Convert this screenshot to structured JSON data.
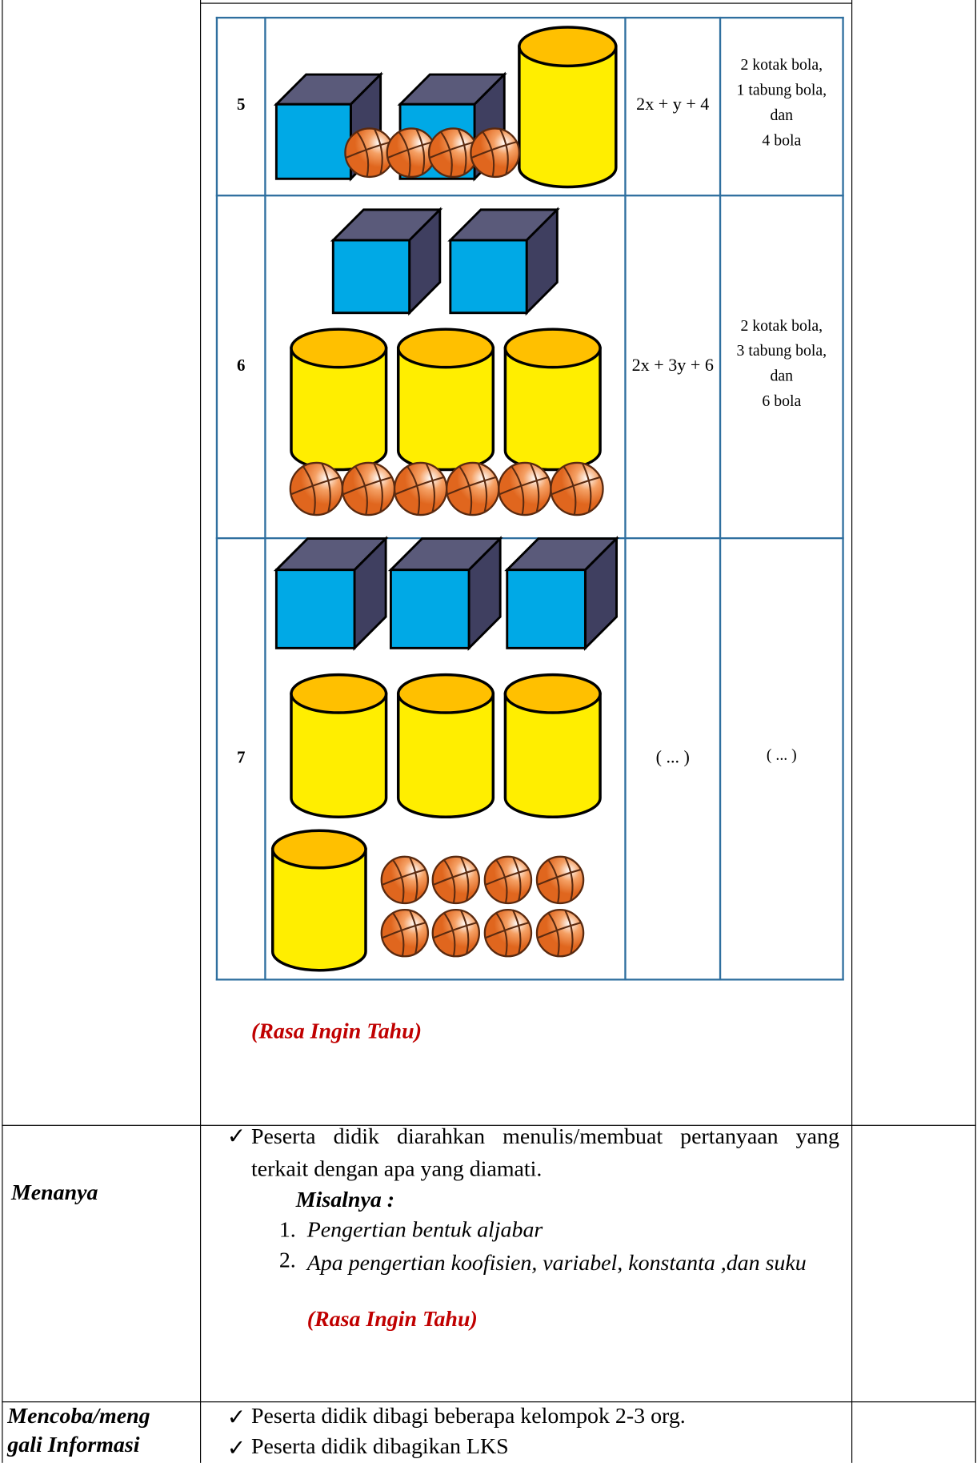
{
  "inner_table": {
    "rows": [
      {
        "number": "5",
        "expression": "2x + y + 4",
        "description": [
          "2 kotak bola,",
          "1 tabung bola,",
          "dan",
          "4 bola"
        ]
      },
      {
        "number": "6",
        "expression": "2x + 3y + 6",
        "description": [
          "2 kotak bola,",
          "3 tabung bola,",
          "dan",
          "6 bola"
        ]
      },
      {
        "number": "7",
        "expression": "( ... )",
        "description": [
          "( ... )"
        ]
      }
    ]
  },
  "note": "(Rasa Ingin Tahu)",
  "rows": [
    {
      "stage": [
        "Menanya"
      ],
      "text": "Peserta didik diarahkan menulis/membuat pertanyaan yang terkait dengan apa yang diamati.",
      "example_label": "Misalnya :",
      "examples": [
        {
          "number": "1.",
          "text": "Pengertian bentuk aljabar"
        },
        {
          "number": "2.",
          "text": "Apa pengertian koofisien, variabel, konstanta ,dan suku"
        }
      ],
      "note": "(Rasa Ingin Tahu)"
    },
    {
      "stage": [
        "Mencoba/meng",
        "gali Informasi"
      ],
      "items": [
        "Peserta didik dibagi beberapa kelompok  2-3 org.",
        "Peserta didik dibagikan LKS"
      ]
    }
  ]
}
